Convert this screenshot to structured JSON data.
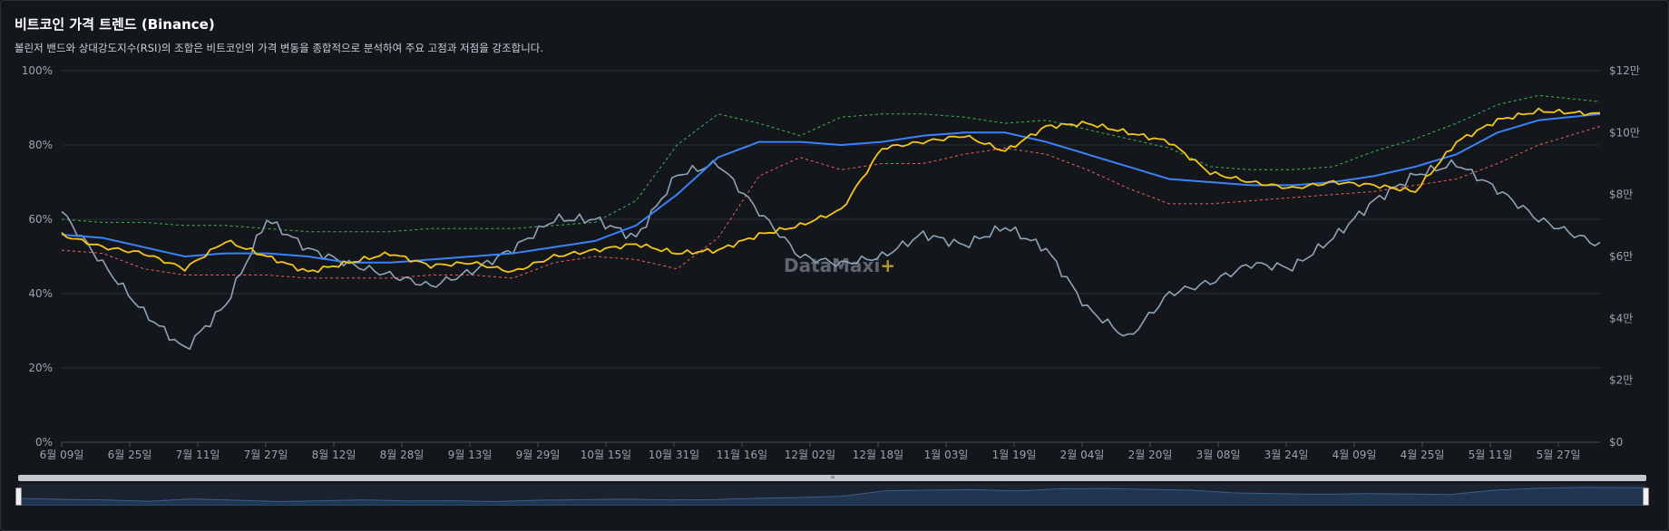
{
  "header": {
    "title": "비트코인 가격 트렌드 (Binance)",
    "subtitle": "볼린저 밴드와 상대강도지수(RSI)의 조합은 비트코인의 가격 변동을 종합적으로 분석하여 주요 고점과 저점을 강조합니다."
  },
  "watermark": {
    "text": "DataMaxi",
    "plus": "+"
  },
  "chart_data": {
    "type": "line",
    "title": "비트코인 가격 트렌드 (Binance)",
    "x_tick_labels": [
      "6월 09일",
      "6월 25일",
      "7월 11일",
      "7월 27일",
      "8월 12일",
      "8월 28일",
      "9월 13일",
      "9월 29일",
      "10월 15일",
      "10월 31일",
      "11월 16일",
      "12월 02일",
      "12월 18일",
      "1월 03일",
      "1월 19일",
      "2월 04일",
      "2월 20일",
      "3월 08일",
      "3월 24일",
      "4월 09일",
      "4월 25일",
      "5월 11일",
      "5월 27일"
    ],
    "y_left": {
      "ticks": [
        "0%",
        "20%",
        "40%",
        "60%",
        "80%",
        "100%"
      ],
      "ylim": [
        0,
        100
      ]
    },
    "y_right": {
      "ticks": [
        "$0",
        "$2만",
        "$4만",
        "$6만",
        "$8만",
        "$10만",
        "$12만"
      ],
      "ylim": [
        0,
        120000
      ]
    },
    "grid": true,
    "colors": {
      "price": "#f5c518",
      "sma": "#3b82f6",
      "upper": "#3fb950",
      "lower": "#f25f5c",
      "rsi": "#8ea4b8"
    },
    "x_days_from_start": [
      0,
      20,
      40,
      60,
      80,
      100,
      120,
      140,
      160,
      180,
      200,
      220,
      240,
      260,
      280,
      300,
      320,
      340,
      360,
      380,
      400,
      420,
      440,
      460,
      480,
      500,
      520,
      540,
      560,
      580,
      600,
      620,
      640,
      660,
      680,
      700,
      720,
      750
    ],
    "series": [
      {
        "key": "price",
        "axis": "right",
        "values": [
          67000,
          63000,
          61000,
          56000,
          65000,
          60000,
          55000,
          58000,
          61000,
          57000,
          58000,
          55000,
          60000,
          62000,
          64000,
          61000,
          62000,
          67000,
          70000,
          75000,
          95000,
          97000,
          99000,
          94000,
          102000,
          103000,
          100000,
          97000,
          87000,
          84000,
          82000,
          84000,
          83000,
          81000,
          97000,
          104000,
          107000,
          106000
        ]
      },
      {
        "key": "sma",
        "axis": "right",
        "values": [
          67000,
          66000,
          63000,
          60000,
          61000,
          61000,
          60000,
          58000,
          58000,
          59000,
          60000,
          61000,
          63000,
          65000,
          70000,
          80000,
          92000,
          97000,
          97000,
          96000,
          97000,
          99000,
          100000,
          100000,
          97000,
          93000,
          89000,
          85000,
          84000,
          83000,
          83000,
          84000,
          86000,
          89000,
          93000,
          100000,
          104000,
          106000
        ]
      },
      {
        "key": "upper",
        "axis": "right",
        "values": [
          72000,
          71000,
          71000,
          70000,
          70000,
          69000,
          68000,
          68000,
          68000,
          69000,
          69000,
          69000,
          70000,
          71000,
          78000,
          96000,
          106000,
          103000,
          99000,
          105000,
          106000,
          106000,
          105000,
          103000,
          104000,
          101000,
          98000,
          95000,
          89000,
          88000,
          88000,
          89000,
          94000,
          98000,
          103000,
          109000,
          112000,
          110000
        ]
      },
      {
        "key": "lower",
        "axis": "right",
        "values": [
          62000,
          61000,
          56000,
          54000,
          54000,
          54000,
          53000,
          53000,
          53000,
          54000,
          54000,
          53000,
          58000,
          60000,
          59000,
          56000,
          66000,
          86000,
          92000,
          88000,
          90000,
          90000,
          93000,
          95000,
          93000,
          88000,
          82000,
          77000,
          77000,
          78000,
          79000,
          80000,
          81000,
          83000,
          85000,
          90000,
          96000,
          102000
        ]
      },
      {
        "key": "rsi",
        "axis": "left",
        "values": [
          62,
          48,
          35,
          25,
          37,
          60,
          52,
          48,
          45,
          42,
          46,
          52,
          60,
          60,
          55,
          72,
          75,
          62,
          50,
          48,
          50,
          56,
          53,
          58,
          52,
          36,
          28,
          40,
          43,
          48,
          47,
          55,
          65,
          72,
          75,
          68,
          60,
          53
        ]
      }
    ]
  }
}
